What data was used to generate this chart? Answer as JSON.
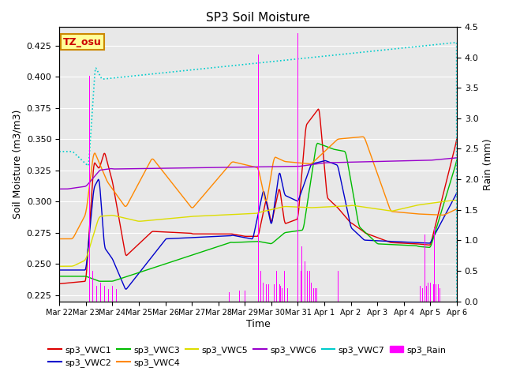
{
  "title": "SP3 Soil Moisture",
  "ylabel_left": "Soil Moisture (m3/m3)",
  "ylabel_right": "Rain (mm)",
  "xlabel": "Time",
  "ylim_left": [
    0.22,
    0.44
  ],
  "ylim_right": [
    0.0,
    4.5
  ],
  "bg_color": "#e8e8e8",
  "annotation_text": "TZ_osu",
  "annotation_color": "#cc0000",
  "annotation_bg": "#ffff99",
  "annotation_border": "#cc8800",
  "colors": {
    "VWC1": "#dd0000",
    "VWC2": "#0000cc",
    "VWC3": "#00bb00",
    "VWC4": "#ff8800",
    "VWC5": "#dddd00",
    "VWC6": "#9900cc",
    "VWC7": "#00cccc",
    "Rain": "#ff00ff"
  },
  "x_tick_labels": [
    "Mar 22",
    "Mar 23",
    "Mar 24",
    "Mar 25",
    "Mar 26",
    "Mar 27",
    "Mar 28",
    "Mar 29",
    "Mar 30",
    "Mar 31",
    "Apr 1",
    "Apr 2",
    "Apr 3",
    "Apr 4",
    "Apr 5",
    "Apr 6"
  ],
  "n_points": 1500
}
